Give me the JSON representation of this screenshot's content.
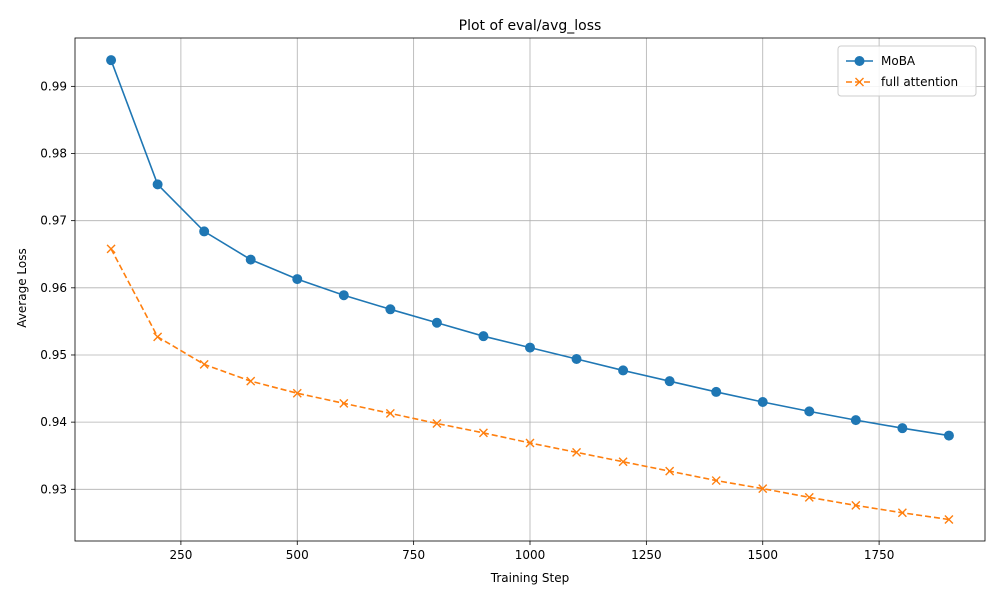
{
  "chart_data": {
    "type": "line",
    "title": "Plot of eval/avg_loss",
    "xlabel": "Training Step",
    "ylabel": "Average Loss",
    "xlim": [
      22.5,
      1977.5
    ],
    "ylim": [
      0.9223,
      0.9972
    ],
    "xticks": [
      250,
      500,
      750,
      1000,
      1250,
      1500,
      1750
    ],
    "yticks": [
      0.93,
      0.94,
      0.95,
      0.96,
      0.97,
      0.98,
      0.99
    ],
    "grid": true,
    "legend_position": "top-right",
    "x": [
      100,
      200,
      300,
      400,
      500,
      600,
      700,
      800,
      900,
      1000,
      1100,
      1200,
      1300,
      1400,
      1500,
      1600,
      1700,
      1800,
      1900
    ],
    "series": [
      {
        "name": "MoBA",
        "color": "#1f77b4",
        "marker": "circle",
        "line_style": "solid",
        "values": [
          0.9939,
          0.9754,
          0.9684,
          0.9642,
          0.9613,
          0.9589,
          0.9568,
          0.9548,
          0.9528,
          0.9511,
          0.9494,
          0.9477,
          0.9461,
          0.9445,
          0.943,
          0.9416,
          0.9403,
          0.9391,
          0.938
        ]
      },
      {
        "name": "full attention",
        "color": "#ff7f0e",
        "marker": "x",
        "line_style": "dashed",
        "values": [
          0.9658,
          0.9527,
          0.9486,
          0.9461,
          0.9443,
          0.9428,
          0.9413,
          0.9398,
          0.9384,
          0.9369,
          0.9355,
          0.9341,
          0.9327,
          0.9313,
          0.9301,
          0.9288,
          0.9276,
          0.9265,
          0.9255
        ]
      }
    ]
  }
}
